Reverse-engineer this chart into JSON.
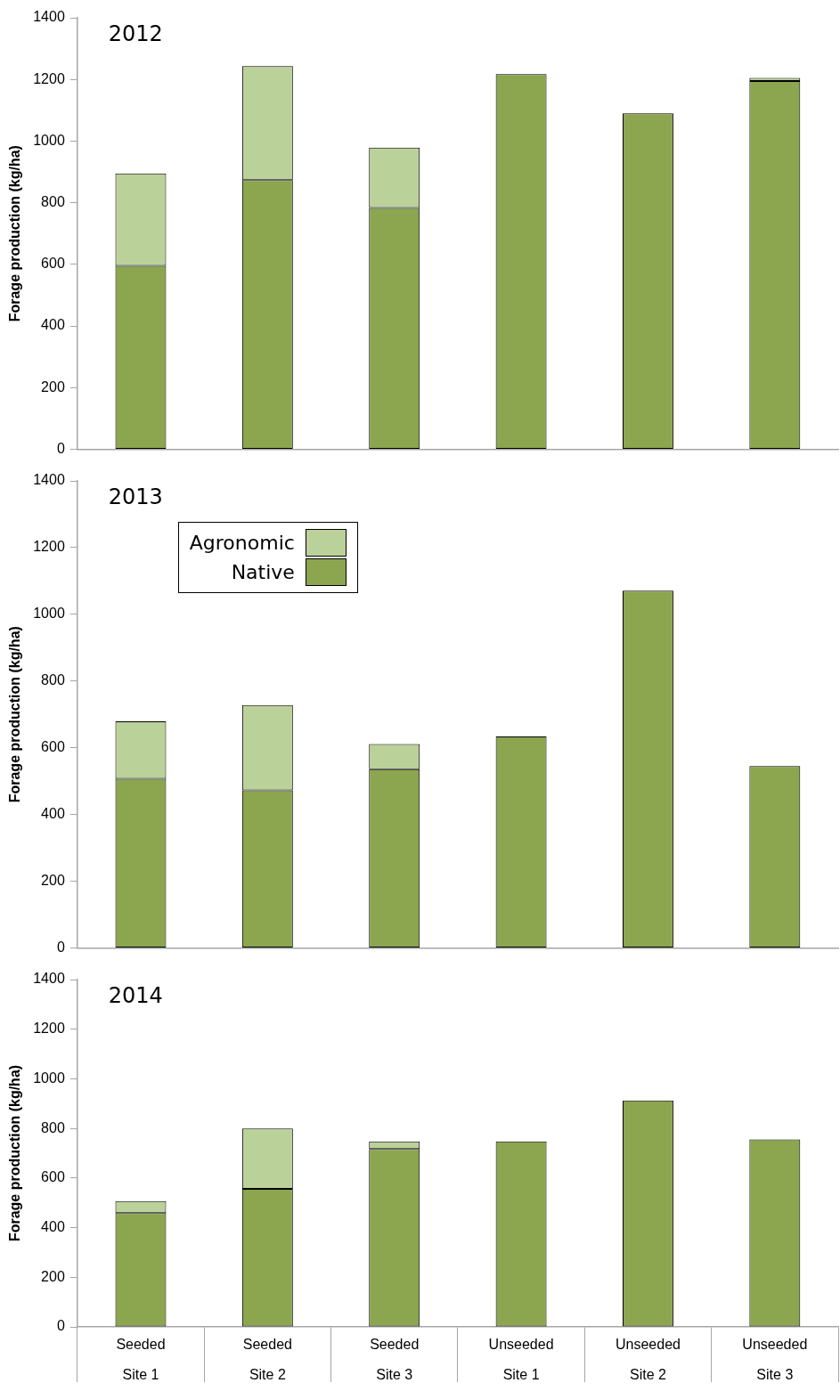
{
  "chart_data": [
    {
      "type": "bar",
      "title": "2012",
      "ylabel": "Forage production (kg/ha)",
      "categories": [
        null,
        null,
        null,
        null,
        null,
        null
      ],
      "stacked": true,
      "ylim": [
        0,
        1400
      ],
      "yticks": [
        0,
        200,
        400,
        600,
        800,
        1000,
        1200,
        1400
      ],
      "grid": false,
      "legend": false,
      "tick_labels": "y",
      "series": [
        {
          "color": "#8ba64f",
          "values": [
            595,
            873,
            783,
            1217,
            1090,
            1195
          ]
        },
        {
          "color": "#bbd19a",
          "values": [
            300,
            370,
            196,
            0,
            0,
            10
          ]
        }
      ]
    },
    {
      "type": "bar",
      "title": "2013",
      "ylabel": "Forage production (kg/ha)",
      "categories": [
        null,
        null,
        null,
        null,
        null,
        null
      ],
      "stacked": true,
      "ylim": [
        0,
        1400
      ],
      "yticks": [
        0,
        200,
        400,
        600,
        800,
        1000,
        1200,
        1400
      ],
      "grid": false,
      "legend": "top left",
      "tick_labels": "y",
      "series": [
        {
          "name": "Native",
          "color": "#8ba64f",
          "values": [
            507,
            472,
            536,
            634,
            1071,
            545
          ]
        },
        {
          "name": "Agronomic",
          "color": "#bbd19a",
          "values": [
            172,
            256,
            75,
            0,
            0,
            0
          ]
        }
      ]
    },
    {
      "type": "bar",
      "title": "2014",
      "ylabel": "Forage production (kg/ha)",
      "categories": [
        "Seeded\nSite 1",
        "Seeded\nSite 2",
        "Seeded\nSite 3",
        "Unseeded\nSite 1",
        "Unseeded\nSite 2",
        "Unseeded\nSite 3"
      ],
      "stacked": true,
      "ylim": [
        0,
        1400
      ],
      "yticks": [
        0,
        200,
        400,
        600,
        800,
        1000,
        1200,
        1400
      ],
      "grid": false,
      "legend": false,
      "series": [
        {
          "color": "#8ba64f",
          "values": [
            459,
            556,
            717,
            748,
            913,
            756
          ]
        },
        {
          "color": "#bbd19a",
          "values": [
            48,
            244,
            31,
            0,
            0,
            0
          ]
        }
      ]
    }
  ]
}
